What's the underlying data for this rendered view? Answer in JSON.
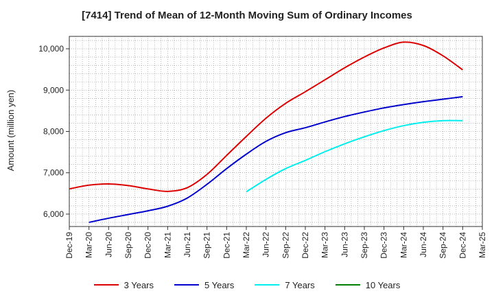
{
  "chart_data": {
    "type": "line",
    "title": "[7414]  Trend of Mean of 12-Month Moving Sum of Ordinary Incomes",
    "xlabel": "",
    "ylabel": "Amount (million yen)",
    "ylim": [
      5700,
      10300
    ],
    "yticks": [
      6000,
      7000,
      8000,
      9000,
      10000
    ],
    "ytick_labels": [
      "6,000",
      "7,000",
      "8,000",
      "9,000",
      "10,000"
    ],
    "categories": [
      "Dec-19",
      "Mar-20",
      "Jun-20",
      "Sep-20",
      "Dec-20",
      "Mar-21",
      "Jun-21",
      "Sep-21",
      "Dec-21",
      "Mar-22",
      "Jun-22",
      "Sep-22",
      "Dec-22",
      "Mar-23",
      "Jun-23",
      "Sep-23",
      "Dec-23",
      "Mar-24",
      "Jun-24",
      "Sep-24",
      "Dec-24",
      "Mar-25"
    ],
    "grid": true,
    "series": [
      {
        "name": "3 Years",
        "color": "#dd0000",
        "values": [
          6610,
          6700,
          6730,
          6690,
          6610,
          6550,
          6640,
          6960,
          7420,
          7880,
          8320,
          8680,
          8960,
          9250,
          9540,
          9800,
          10020,
          10160,
          10080,
          9830,
          9490,
          null
        ]
      },
      {
        "name": "5 Years",
        "color": "#0000cc",
        "values": [
          null,
          5800,
          5900,
          5990,
          6080,
          6190,
          6390,
          6720,
          7100,
          7450,
          7760,
          7970,
          8090,
          8230,
          8360,
          8470,
          8570,
          8650,
          8720,
          8780,
          8840,
          null
        ]
      },
      {
        "name": "7 Years",
        "color": "#00eeee",
        "values": [
          null,
          null,
          null,
          null,
          null,
          null,
          null,
          null,
          null,
          6540,
          6840,
          7100,
          7300,
          7510,
          7700,
          7870,
          8020,
          8140,
          8220,
          8260,
          8260,
          null
        ]
      },
      {
        "name": "10 Years",
        "color": "#008000",
        "values": [
          null,
          null,
          null,
          null,
          null,
          null,
          null,
          null,
          null,
          null,
          null,
          null,
          null,
          null,
          null,
          null,
          null,
          null,
          null,
          null,
          null,
          null
        ]
      }
    ]
  }
}
